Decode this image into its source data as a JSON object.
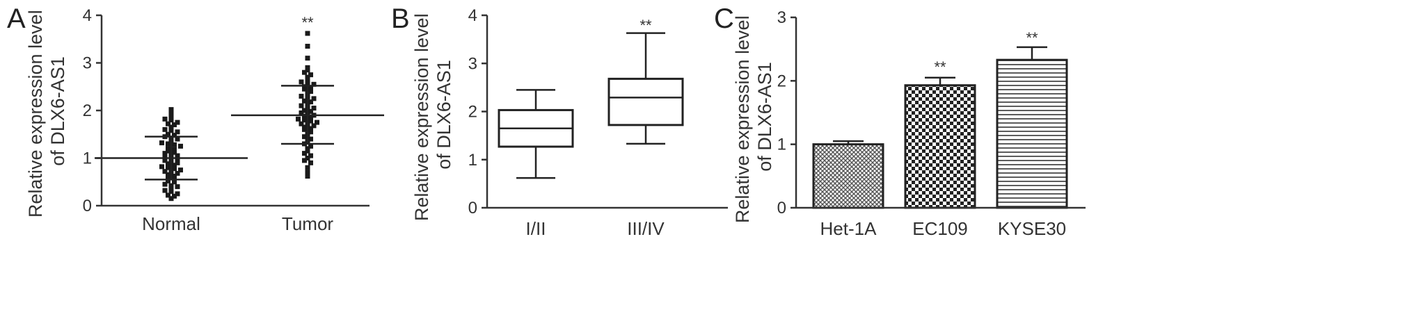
{
  "panels": [
    {
      "letter": "A",
      "ylabel_lines": [
        "Relative expression level",
        "of DLX6-AS1"
      ],
      "yticks": [
        "0",
        "1",
        "2",
        "3",
        "4"
      ],
      "categories": [
        "Normal",
        "Tumor"
      ],
      "significance": [
        "",
        "**"
      ]
    },
    {
      "letter": "B",
      "ylabel_lines": [
        "Relative expression level",
        "of DLX6-AS1"
      ],
      "yticks": [
        "0",
        "1",
        "2",
        "3",
        "4"
      ],
      "categories": [
        "I/II",
        "III/IV"
      ],
      "significance": [
        "",
        "**"
      ]
    },
    {
      "letter": "C",
      "ylabel_lines": [
        "Relative expression level",
        "of DLX6-AS1"
      ],
      "yticks": [
        "0",
        "1",
        "2",
        "3"
      ],
      "categories": [
        "Het-1A",
        "EC109",
        "KYSE30"
      ],
      "significance": [
        "",
        "**",
        "**"
      ]
    }
  ],
  "chart_data": [
    {
      "type": "scatter",
      "title": "",
      "ylabel": "Relative expression level of DLX6-AS1",
      "ylim": [
        0,
        4
      ],
      "categories": [
        "Normal",
        "Tumor"
      ],
      "summary": [
        {
          "mean": 1.0,
          "sd_low": 0.55,
          "sd_high": 1.45
        },
        {
          "mean": 1.9,
          "sd_low": 1.3,
          "sd_high": 2.52
        }
      ],
      "points": [
        [
          2.02,
          1.95,
          1.88,
          1.82,
          1.8,
          1.75,
          1.72,
          1.7,
          1.65,
          1.6,
          1.58,
          1.55,
          1.5,
          1.48,
          1.45,
          1.42,
          1.4,
          1.35,
          1.32,
          1.3,
          1.28,
          1.25,
          1.2,
          1.18,
          1.15,
          1.12,
          1.1,
          1.08,
          1.05,
          1.02,
          1.0,
          0.98,
          0.95,
          0.92,
          0.9,
          0.88,
          0.85,
          0.82,
          0.8,
          0.78,
          0.75,
          0.72,
          0.7,
          0.68,
          0.65,
          0.62,
          0.6,
          0.55,
          0.52,
          0.5,
          0.45,
          0.42,
          0.4,
          0.35,
          0.32,
          0.3,
          0.25,
          0.22,
          0.2,
          0.15
        ],
        [
          3.62,
          3.35,
          3.1,
          2.9,
          2.85,
          2.8,
          2.75,
          2.7,
          2.65,
          2.6,
          2.58,
          2.55,
          2.5,
          2.48,
          2.45,
          2.4,
          2.35,
          2.3,
          2.28,
          2.25,
          2.2,
          2.18,
          2.15,
          2.1,
          2.08,
          2.05,
          2.0,
          1.98,
          1.95,
          1.92,
          1.9,
          1.88,
          1.85,
          1.82,
          1.8,
          1.78,
          1.75,
          1.72,
          1.7,
          1.68,
          1.65,
          1.62,
          1.6,
          1.55,
          1.5,
          1.45,
          1.4,
          1.35,
          1.3,
          1.25,
          1.2,
          1.15,
          1.1,
          1.05,
          1.0,
          0.95,
          0.9,
          0.8,
          0.7,
          0.62
        ]
      ]
    },
    {
      "type": "box",
      "title": "",
      "ylabel": "Relative expression level of DLX6-AS1",
      "ylim": [
        0,
        4
      ],
      "categories": [
        "I/II",
        "III/IV"
      ],
      "boxes": [
        {
          "min": 0.62,
          "q1": 1.27,
          "median": 1.65,
          "q3": 2.03,
          "max": 2.45
        },
        {
          "min": 1.33,
          "q1": 1.72,
          "median": 2.29,
          "q3": 2.68,
          "max": 3.63
        }
      ]
    },
    {
      "type": "bar",
      "title": "",
      "ylabel": "Relative expression level of DLX6-AS1",
      "ylim": [
        0,
        3
      ],
      "categories": [
        "Het-1A",
        "EC109",
        "KYSE30"
      ],
      "values": [
        1.0,
        1.93,
        2.33
      ],
      "errors": [
        0.05,
        0.12,
        0.2
      ],
      "patterns": [
        "fine-crosshatch",
        "checker",
        "horizontal-lines"
      ]
    }
  ]
}
